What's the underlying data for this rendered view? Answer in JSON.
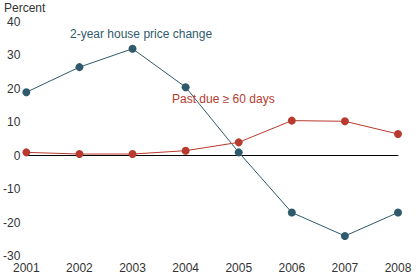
{
  "chart_data": {
    "type": "line",
    "y_label": "Percent",
    "categories": [
      "2001",
      "2002",
      "2003",
      "2004",
      "2005",
      "2006",
      "2007",
      "2008"
    ],
    "series": [
      {
        "name": "2-year house price change",
        "color": "#2f5a6b",
        "marker": "circle",
        "values": [
          19,
          26.5,
          32,
          20.5,
          1,
          -17,
          -24,
          -17
        ]
      },
      {
        "name": "Past due ≥ 60 days",
        "color": "#b83a2e",
        "marker": "circle",
        "values": [
          1,
          0.5,
          0.5,
          1.5,
          4,
          10.5,
          10.3,
          6.5
        ]
      }
    ],
    "ylim": [
      -30,
      40
    ],
    "yticks": [
      -30,
      -20,
      -10,
      0,
      10,
      20,
      30,
      40
    ],
    "grid": false
  }
}
